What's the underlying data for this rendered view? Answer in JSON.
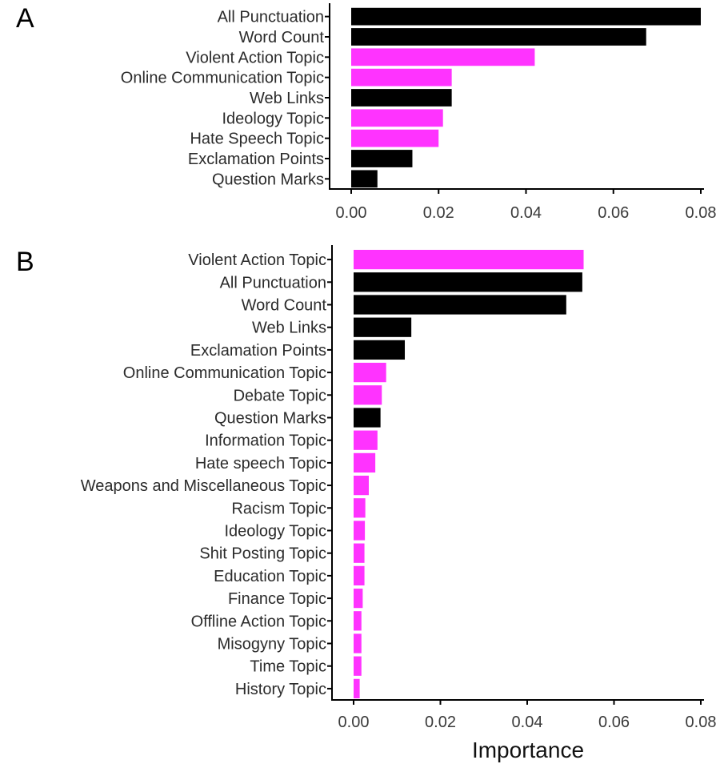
{
  "colors": {
    "topic": "#ff33ff",
    "non_topic": "#000000"
  },
  "chart_data": [
    {
      "type": "bar",
      "orientation": "horizontal",
      "panel_label": "A",
      "xlabel": "",
      "xlim": [
        0,
        0.08
      ],
      "xticks": [
        "0.00",
        "0.02",
        "0.04",
        "0.06",
        "0.08"
      ],
      "categories": [
        "All Punctuation",
        "Word Count",
        "Violent Action Topic",
        "Online Communication Topic",
        "Web Links",
        "Ideology Topic",
        "Hate Speech Topic",
        "Exclamation Points",
        "Question Marks"
      ],
      "values": [
        0.08,
        0.0675,
        0.042,
        0.023,
        0.023,
        0.021,
        0.02,
        0.014,
        0.006
      ],
      "kinds": [
        "non_topic",
        "non_topic",
        "topic",
        "topic",
        "non_topic",
        "topic",
        "topic",
        "non_topic",
        "non_topic"
      ]
    },
    {
      "type": "bar",
      "orientation": "horizontal",
      "panel_label": "B",
      "xlabel": "Importance",
      "xlim": [
        0,
        0.08
      ],
      "xticks": [
        "0.00",
        "0.02",
        "0.04",
        "0.06",
        "0.08"
      ],
      "categories": [
        "Violent Action Topic",
        "All Punctuation",
        "Word Count",
        "Web Links",
        "Exclamation Points",
        "Online Communication Topic",
        "Debate Topic",
        "Question Marks",
        "Information Topic",
        "Hate speech Topic",
        "Weapons and Miscellaneous Topic",
        "Racism Topic",
        "Ideology Topic",
        "Shit Posting Topic",
        "Education Topic",
        "Finance Topic",
        "Offline Action Topic",
        "Misogyny Topic",
        "Time Topic",
        "History Topic"
      ],
      "values": [
        0.053,
        0.0527,
        0.049,
        0.0133,
        0.0118,
        0.0075,
        0.0065,
        0.0062,
        0.0055,
        0.005,
        0.0035,
        0.0027,
        0.0026,
        0.0025,
        0.0025,
        0.0021,
        0.0018,
        0.0018,
        0.0018,
        0.0014
      ],
      "kinds": [
        "topic",
        "non_topic",
        "non_topic",
        "non_topic",
        "non_topic",
        "topic",
        "topic",
        "non_topic",
        "topic",
        "topic",
        "topic",
        "topic",
        "topic",
        "topic",
        "topic",
        "topic",
        "topic",
        "topic",
        "topic",
        "topic"
      ]
    }
  ]
}
